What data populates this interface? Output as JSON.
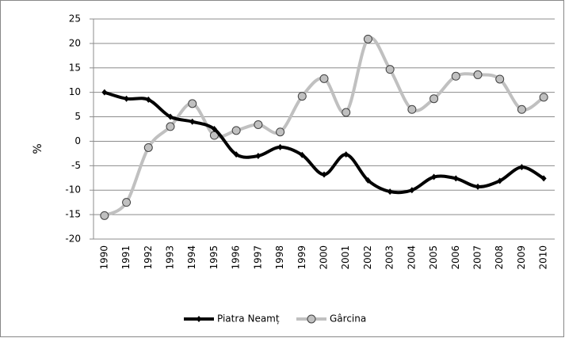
{
  "chart_data": {
    "type": "line",
    "y_label": "%",
    "categories": [
      "1990",
      "1991",
      "1992",
      "1993",
      "1994",
      "1995",
      "1996",
      "1997",
      "1998",
      "1999",
      "2000",
      "2001",
      "2002",
      "2003",
      "2004",
      "2005",
      "2006",
      "2007",
      "2008",
      "2009",
      "2010"
    ],
    "series": [
      {
        "name": "Piatra Neamț",
        "color": "#000000",
        "marker": "diamond",
        "values": [
          10,
          8.7,
          8.5,
          5,
          4,
          2.5,
          -2.7,
          -3,
          -1.2,
          -2.8,
          -6.8,
          -2.7,
          -8,
          -10.3,
          -10,
          -7.3,
          -7.6,
          -9.3,
          -8.1,
          -5.3,
          -7.6
        ]
      },
      {
        "name": "Gârcina",
        "color": "#c0c0c0",
        "marker": "circle",
        "values": [
          -15.2,
          -12.5,
          -1.3,
          3,
          7.7,
          1.2,
          2.2,
          3.4,
          1.9,
          9.2,
          12.8,
          5.9,
          20.9,
          14.7,
          6.5,
          8.7,
          13.3,
          13.6,
          12.7,
          6.5,
          9
        ]
      }
    ],
    "ylim": [
      -20,
      25
    ],
    "yticks": [
      -20,
      -15,
      -10,
      -5,
      0,
      5,
      10,
      15,
      20,
      25
    ],
    "grid": true,
    "legend": "bottom",
    "smooth": true
  }
}
